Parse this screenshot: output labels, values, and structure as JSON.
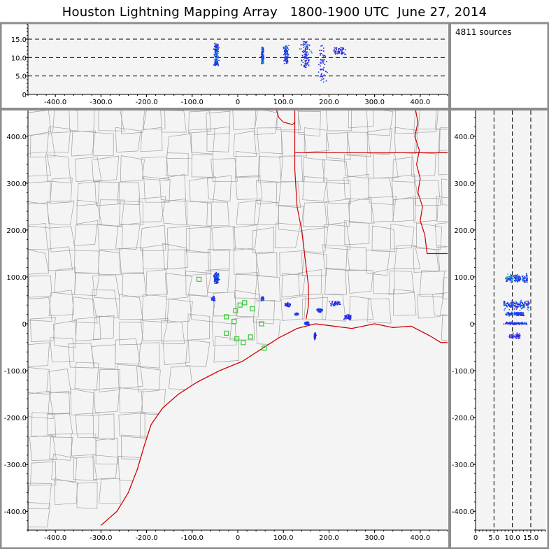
{
  "title": "Houston Lightning Mapping Array   1800-1900 UTC  June 27, 2014",
  "source_count": "4811 sources",
  "colors": {
    "frame": "#8c8c8c",
    "panel_bg": "#f4f4f4",
    "county_line": "#a0a0a0",
    "coast_line": "#d00000",
    "station": "#33cc33",
    "low_density": "#3020d8",
    "mid_density": "#1060ff",
    "high_density": "#10c0b0",
    "peak_density": "#30e060"
  },
  "chart_data": [
    {
      "type": "scatter",
      "name": "altitude_vs_east_west",
      "xlabel": "",
      "ylabel": "",
      "xlim": [
        -460,
        460
      ],
      "ylim": [
        0,
        19
      ],
      "xticks": [
        "-400.0",
        "-300.0",
        "-200.0",
        "-100.0",
        "0",
        "100.0",
        "200.0",
        "300.0",
        "400.0"
      ],
      "yticks": [
        "0",
        "5.0",
        "10.0",
        "15.0"
      ],
      "reference_lines_y": [
        5,
        10,
        15
      ],
      "clusters": [
        {
          "x_center": -48,
          "x_spread": 7,
          "alt_min": 8,
          "alt_max": 14,
          "density": "high"
        },
        {
          "x_center": 53,
          "x_spread": 4,
          "alt_min": 8.5,
          "alt_max": 13,
          "density": "high"
        },
        {
          "x_center": 105,
          "x_spread": 8,
          "alt_min": 8.5,
          "alt_max": 13.5,
          "density": "mid"
        },
        {
          "x_center": 148,
          "x_spread": 14,
          "alt_min": 7.5,
          "alt_max": 14.5,
          "density": "mid"
        },
        {
          "x_center": 185,
          "x_spread": 14,
          "alt_min": 3.5,
          "alt_max": 13.5,
          "density": "low"
        },
        {
          "x_center": 222,
          "x_spread": 20,
          "alt_min": 11,
          "alt_max": 13,
          "density": "low"
        }
      ]
    },
    {
      "type": "scatter",
      "name": "plan_view_map",
      "xlabel": "",
      "ylabel": "",
      "xlim": [
        -460,
        460
      ],
      "ylim": [
        -440,
        455
      ],
      "xticks": [
        "-400.0",
        "-300.0",
        "-200.0",
        "-100.0",
        "0",
        "100.0",
        "200.0",
        "300.0",
        "400.0"
      ],
      "yticks": [
        "-400.0",
        "-300.0",
        "-200.0",
        "-100.0",
        "0",
        "100.0",
        "200.0",
        "300.0",
        "400.0"
      ],
      "stations": [
        [
          -85,
          95
        ],
        [
          -25,
          15
        ],
        [
          -25,
          -20
        ],
        [
          -5,
          28
        ],
        [
          5,
          40
        ],
        [
          15,
          45
        ],
        [
          32,
          32
        ],
        [
          -8,
          5
        ],
        [
          -2,
          -32
        ],
        [
          12,
          -40
        ],
        [
          28,
          -28
        ],
        [
          52,
          0
        ],
        [
          58,
          -52
        ]
      ],
      "clusters": [
        {
          "x_center": -48,
          "y_center": 98,
          "x_spread": 8,
          "y_spread": 14,
          "density": "high"
        },
        {
          "x_center": -55,
          "y_center": 55,
          "x_spread": 4,
          "y_spread": 6,
          "density": "mid"
        },
        {
          "x_center": 53,
          "y_center": 55,
          "x_spread": 4,
          "y_spread": 5,
          "density": "high"
        },
        {
          "x_center": 108,
          "y_center": 42,
          "x_spread": 8,
          "y_spread": 5,
          "density": "high"
        },
        {
          "x_center": 128,
          "y_center": 22,
          "x_spread": 5,
          "y_spread": 3,
          "density": "mid"
        },
        {
          "x_center": 150,
          "y_center": 2,
          "x_spread": 7,
          "y_spread": 4,
          "density": "high"
        },
        {
          "x_center": 178,
          "y_center": 30,
          "x_spread": 8,
          "y_spread": 5,
          "density": "mid"
        },
        {
          "x_center": 212,
          "y_center": 45,
          "x_spread": 16,
          "y_spread": 9,
          "density": "low"
        },
        {
          "x_center": 168,
          "y_center": -25,
          "x_spread": 3,
          "y_spread": 10,
          "density": "low"
        },
        {
          "x_center": 240,
          "y_center": 15,
          "x_spread": 12,
          "y_spread": 8,
          "density": "low"
        }
      ]
    },
    {
      "type": "scatter",
      "name": "north_south_vs_altitude",
      "xlabel": "",
      "ylabel": "",
      "xlim": [
        0,
        19
      ],
      "ylim": [
        -440,
        455
      ],
      "xticks": [
        "0",
        "5.0",
        "10.0",
        "15.0"
      ],
      "yticks": [
        "-400.0",
        "-300.0",
        "-200.0",
        "-100.0",
        "0",
        "100.0",
        "200.0",
        "300.0",
        "400.0"
      ],
      "reference_lines_x": [
        5,
        10,
        15
      ],
      "clusters": [
        {
          "y_center": 98,
          "y_spread": 12,
          "alt_min": 8,
          "alt_max": 14,
          "density": "high"
        },
        {
          "y_center": 42,
          "y_spread": 14,
          "alt_min": 7.5,
          "alt_max": 14.5,
          "density": "high"
        },
        {
          "y_center": 22,
          "y_spread": 6,
          "alt_min": 8,
          "alt_max": 13,
          "density": "mid"
        },
        {
          "y_center": 2,
          "y_spread": 4,
          "alt_min": 7.5,
          "alt_max": 14,
          "density": "mid"
        },
        {
          "y_center": -25,
          "y_spread": 8,
          "alt_min": 9,
          "alt_max": 12,
          "density": "low"
        }
      ]
    }
  ]
}
